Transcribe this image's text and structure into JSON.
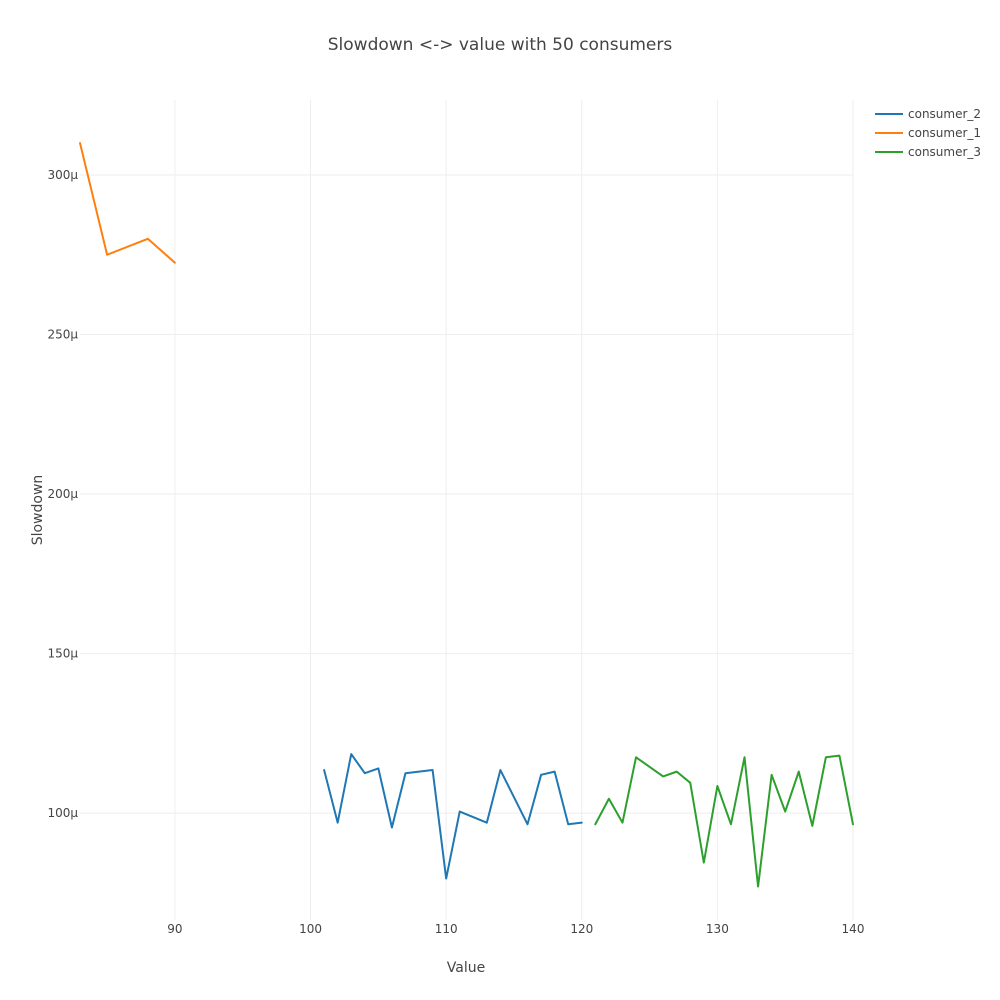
{
  "chart_data": {
    "type": "line",
    "title": "Slowdown <-> value with 50 consumers",
    "xlabel": "Value",
    "ylabel": "Slowdown",
    "xlim": [
      83,
      140
    ],
    "ylim": [
      6.65e-05,
      0.0003235
    ],
    "xticks": [
      90,
      100,
      110,
      120,
      130,
      140
    ],
    "yticks": [
      0.0001,
      0.00015,
      0.0002,
      0.00025,
      0.0003
    ],
    "ytick_labels": [
      "100μ",
      "150μ",
      "200μ",
      "250μ",
      "300μ"
    ],
    "grid": true,
    "legend_position": "top-right",
    "series": [
      {
        "name": "consumer_2",
        "color": "#1f77b4",
        "x": [
          101,
          102,
          103,
          104,
          105,
          106,
          107,
          109,
          110,
          111,
          113,
          114,
          116,
          117,
          118,
          119,
          120
        ],
        "y": [
          0.0001135,
          9.7e-05,
          0.0001185,
          0.0001125,
          0.000114,
          9.55e-05,
          0.0001125,
          0.0001135,
          7.95e-05,
          0.0001005,
          9.7e-05,
          0.0001135,
          9.65e-05,
          0.000112,
          0.000113,
          9.65e-05,
          9.7e-05
        ]
      },
      {
        "name": "consumer_1",
        "color": "#ff7f0e",
        "x": [
          83,
          85,
          88,
          90
        ],
        "y": [
          0.00031,
          0.000275,
          0.00028,
          0.0002725
        ]
      },
      {
        "name": "consumer_3",
        "color": "#2ca02c",
        "x": [
          121,
          122,
          123,
          124,
          126,
          127,
          128,
          129,
          130,
          131,
          132,
          133,
          134,
          135,
          136,
          137,
          138,
          139,
          140
        ],
        "y": [
          9.65e-05,
          0.0001045,
          9.7e-05,
          0.0001175,
          0.0001115,
          0.000113,
          0.0001095,
          8.45e-05,
          0.0001085,
          9.65e-05,
          0.0001175,
          7.7e-05,
          0.000112,
          0.0001005,
          0.000113,
          9.6e-05,
          0.0001175,
          0.000118,
          9.65e-05
        ]
      }
    ]
  }
}
